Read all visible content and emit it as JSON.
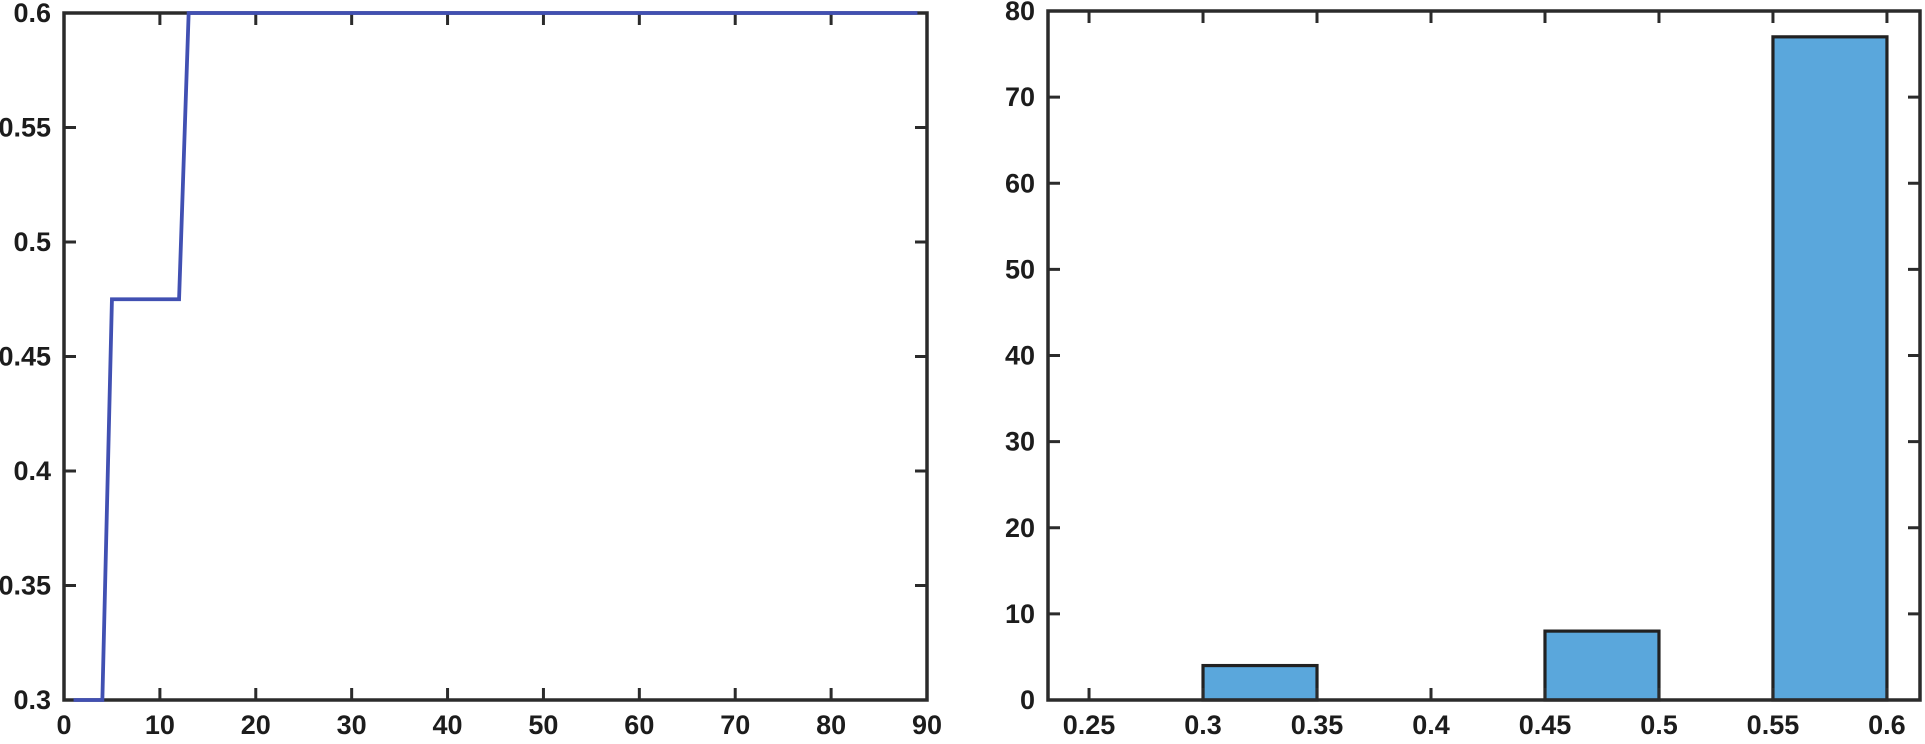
{
  "figure": {
    "background": "#ffffff",
    "axis_color": "#2b2b2b",
    "label_color": "#1c1c1c"
  },
  "chart_data": [
    {
      "id": "step-line",
      "type": "line",
      "title": "",
      "xlabel": "",
      "ylabel": "",
      "legend": "none",
      "grid": false,
      "box": true,
      "xlim": [
        0,
        90
      ],
      "ylim": [
        0.3,
        0.6
      ],
      "xticks": [
        0,
        10,
        20,
        30,
        40,
        50,
        60,
        70,
        80,
        90
      ],
      "xtick_labels": [
        "0",
        "10",
        "20",
        "30",
        "40",
        "50",
        "60",
        "70",
        "80",
        "90"
      ],
      "yticks": [
        0.3,
        0.35,
        0.4,
        0.45,
        0.5,
        0.55,
        0.6
      ],
      "ytick_labels": [
        "0.3",
        "0.35",
        "0.4",
        "0.45",
        "0.5",
        "0.55",
        "0.6"
      ],
      "line_color": "#4150b2",
      "line_width": 3.8,
      "points": [
        [
          1,
          0.3
        ],
        [
          4,
          0.3
        ],
        [
          5,
          0.475
        ],
        [
          12,
          0.475
        ],
        [
          13,
          0.6
        ],
        [
          89,
          0.6
        ]
      ]
    },
    {
      "id": "histogram",
      "type": "bar",
      "title": "",
      "xlabel": "",
      "ylabel": "",
      "legend": "none",
      "grid": false,
      "box": true,
      "xlim": [
        0.232,
        0.6145
      ],
      "ylim": [
        0,
        80
      ],
      "xticks": [
        0.25,
        0.3,
        0.35,
        0.4,
        0.45,
        0.5,
        0.55,
        0.6
      ],
      "xtick_labels": [
        "0.25",
        "0.3",
        "0.35",
        "0.4",
        "0.45",
        "0.5",
        "0.55",
        "0.6"
      ],
      "yticks": [
        0,
        10,
        20,
        30,
        40,
        50,
        60,
        70,
        80
      ],
      "ytick_labels": [
        "0",
        "10",
        "20",
        "30",
        "40",
        "50",
        "60",
        "70",
        "80"
      ],
      "bar_fill": "#5aa7dc",
      "bar_edge": "#212121",
      "bar_edge_width": 3.2,
      "bars": [
        {
          "x0": 0.3,
          "x1": 0.35,
          "value": 4
        },
        {
          "x0": 0.45,
          "x1": 0.5,
          "value": 8
        },
        {
          "x0": 0.55,
          "x1": 0.6,
          "value": 77
        }
      ]
    }
  ]
}
